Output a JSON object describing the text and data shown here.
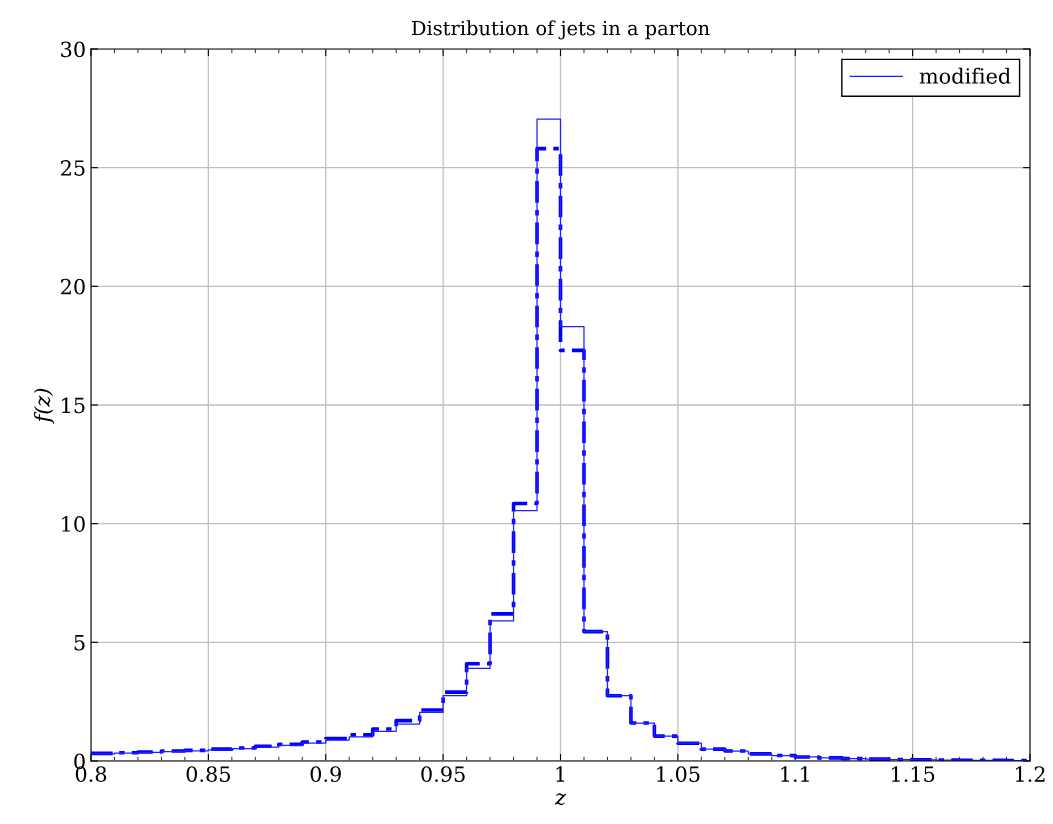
{
  "chart_data": {
    "type": "histogram",
    "title": "Distribution of jets in a parton",
    "xlabel": "z",
    "ylabel": "f(z)",
    "bins": [
      0.8,
      0.81,
      0.82,
      0.83,
      0.84,
      0.85,
      0.86,
      0.87,
      0.88,
      0.89,
      0.9,
      0.91,
      0.92,
      0.93,
      0.94,
      0.95,
      0.96,
      0.97,
      0.98,
      0.99,
      1.0,
      1.01,
      1.02,
      1.03,
      1.04,
      1.05,
      1.06,
      1.07,
      1.08,
      1.09,
      1.1,
      1.11,
      1.12,
      1.13,
      1.14,
      1.15,
      1.16,
      1.17,
      1.18,
      1.19,
      1.2
    ],
    "series": [
      {
        "color": "#0000ff",
        "line_style": "dashed",
        "values": [
          0.32,
          0.35,
          0.38,
          0.42,
          0.45,
          0.5,
          0.55,
          0.62,
          0.7,
          0.8,
          0.95,
          1.1,
          1.35,
          1.7,
          2.15,
          2.9,
          4.1,
          6.2,
          10.85,
          25.8,
          17.3,
          5.45,
          2.75,
          1.6,
          1.05,
          0.75,
          0.5,
          0.42,
          0.3,
          0.23,
          0.17,
          0.13,
          0.1,
          0.08,
          0.06,
          0.05,
          0.04,
          0.03,
          0.03,
          0.02
        ]
      },
      {
        "name": "modified",
        "color": "#2020ff",
        "line_style": "solid",
        "values": [
          0.3,
          0.33,
          0.36,
          0.4,
          0.43,
          0.47,
          0.52,
          0.58,
          0.66,
          0.75,
          0.88,
          1.02,
          1.25,
          1.55,
          2.05,
          2.75,
          3.9,
          5.9,
          10.55,
          27.05,
          18.3,
          5.45,
          2.75,
          1.6,
          1.05,
          0.75,
          0.5,
          0.42,
          0.3,
          0.23,
          0.17,
          0.13,
          0.1,
          0.08,
          0.06,
          0.05,
          0.04,
          0.03,
          0.03,
          0.02
        ]
      }
    ],
    "xlim": [
      0.8,
      1.2
    ],
    "ylim": [
      0,
      30
    ],
    "xticks": [
      {
        "value": 0.8,
        "label": "0.8"
      },
      0.85,
      {
        "value": 0.9,
        "label": "0.9"
      },
      0.95,
      {
        "value": 1.0,
        "label": "1"
      },
      1.05,
      {
        "value": 1.1,
        "label": "1.1"
      },
      1.15,
      {
        "value": 1.2,
        "label": "1.2"
      }
    ],
    "yticks": [
      0,
      5,
      10,
      15,
      20,
      25,
      30
    ],
    "grid": true,
    "legend": "top right"
  }
}
